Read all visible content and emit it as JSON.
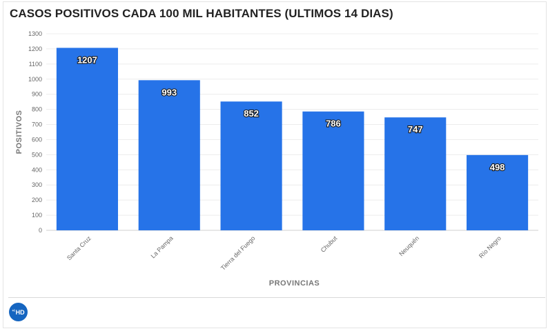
{
  "title": "CASOS POSITIVOS CADA 100 MIL HABITANTES (ULTIMOS 14 DIAS)",
  "logo": {
    "prefix": "+i",
    "text": "HD",
    "color": "#1565c0"
  },
  "chart_data": {
    "type": "bar",
    "title": "CASOS POSITIVOS CADA 100 MIL HABITANTES (ULTIMOS 14 DIAS)",
    "categories": [
      "Santa Cruz",
      "La Pampa",
      "Tierra del Fuego",
      "Chubut",
      "Neuquén",
      "Río Negro"
    ],
    "values": [
      1207,
      993,
      852,
      786,
      747,
      498
    ],
    "xlabel": "PROVINCIAS",
    "ylabel": "POSITIVOS",
    "ylim": [
      0,
      1300
    ],
    "yticks": [
      0,
      100,
      200,
      300,
      400,
      500,
      600,
      700,
      800,
      900,
      1000,
      1100,
      1200,
      1300
    ],
    "grid": true,
    "bar_color": "#2673e8",
    "data_labels": true
  }
}
